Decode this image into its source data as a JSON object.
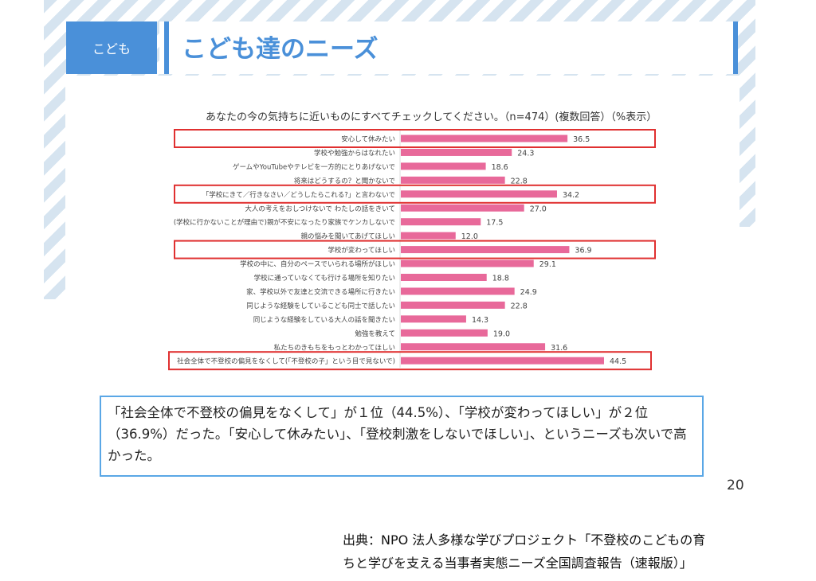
{
  "header": {
    "tag": "こども",
    "title": "こども達のニーズ"
  },
  "chart_data": {
    "type": "bar",
    "orientation": "horizontal",
    "title": "あなたの今の気持ちに近いものにすべてチェックしてください。（n=474）(複数回答）（%表示）",
    "categories": [
      "安心して休みたい",
      "学校や勉強からはなれたい",
      "ゲームやYouTubeやテレビを一方的にとりあげないで",
      "将来はどうするの？と聞かないで",
      "「学校にきて／行きなさい／どうしたらこれる?」と言わないで",
      "大人の考えをおしつけないで わたしの話をきいて",
      "(学校に行かないことが理由で)親が不安になったり家族でケンカしないで",
      "親の悩みを聞いてあげてほしい",
      "学校が変わってほしい",
      "学校の中に、自分のペースでいられる場所がほしい",
      "学校に通っていなくても行ける場所を知りたい",
      "家、学校以外で友達と交流できる場所に行きたい",
      "同じような経験をしているこども同士で話したい",
      "同じような経験をしている大人の話を聞きたい",
      "勉強を教えて",
      "私たちのきもちをもっとわかってほしい",
      "社会全体で不登校の偏見をなくして(「不登校の子」という目で見ないで)"
    ],
    "values": [
      36.5,
      24.3,
      18.6,
      22.8,
      34.2,
      27.0,
      17.5,
      12.0,
      36.9,
      29.1,
      18.8,
      24.9,
      22.8,
      14.3,
      19.0,
      31.6,
      44.5
    ],
    "value_labels": [
      "36.5",
      "24.3",
      "18.6",
      "22.8",
      "34.2",
      "27.0",
      "17.5",
      "12.0",
      "36.9",
      "29.1",
      "18.8",
      "24.9",
      "22.8",
      "14.3",
      "19.0",
      "31.6",
      "44.5"
    ],
    "highlighted": [
      0,
      4,
      8,
      16
    ],
    "xlim": [
      0,
      50
    ],
    "bar_color": "#e8699a",
    "highlight_color": "#e03030"
  },
  "note": "「社会全体で不登校の偏見をなくして」が１位（44.5%）、「学校が変わってほしい」が２位（36.9%）だった。「安心して休みたい」、「登校刺激をしないでほしい」、というニーズも次いで高かった。",
  "page_number": "20",
  "source": {
    "line1": "出典：NPO 法人多様な学びプロジェクト「不登校のこどもの育",
    "line2": "ちと学びを支える当事者実態ニーズ全国調査報告（速報版）」"
  }
}
